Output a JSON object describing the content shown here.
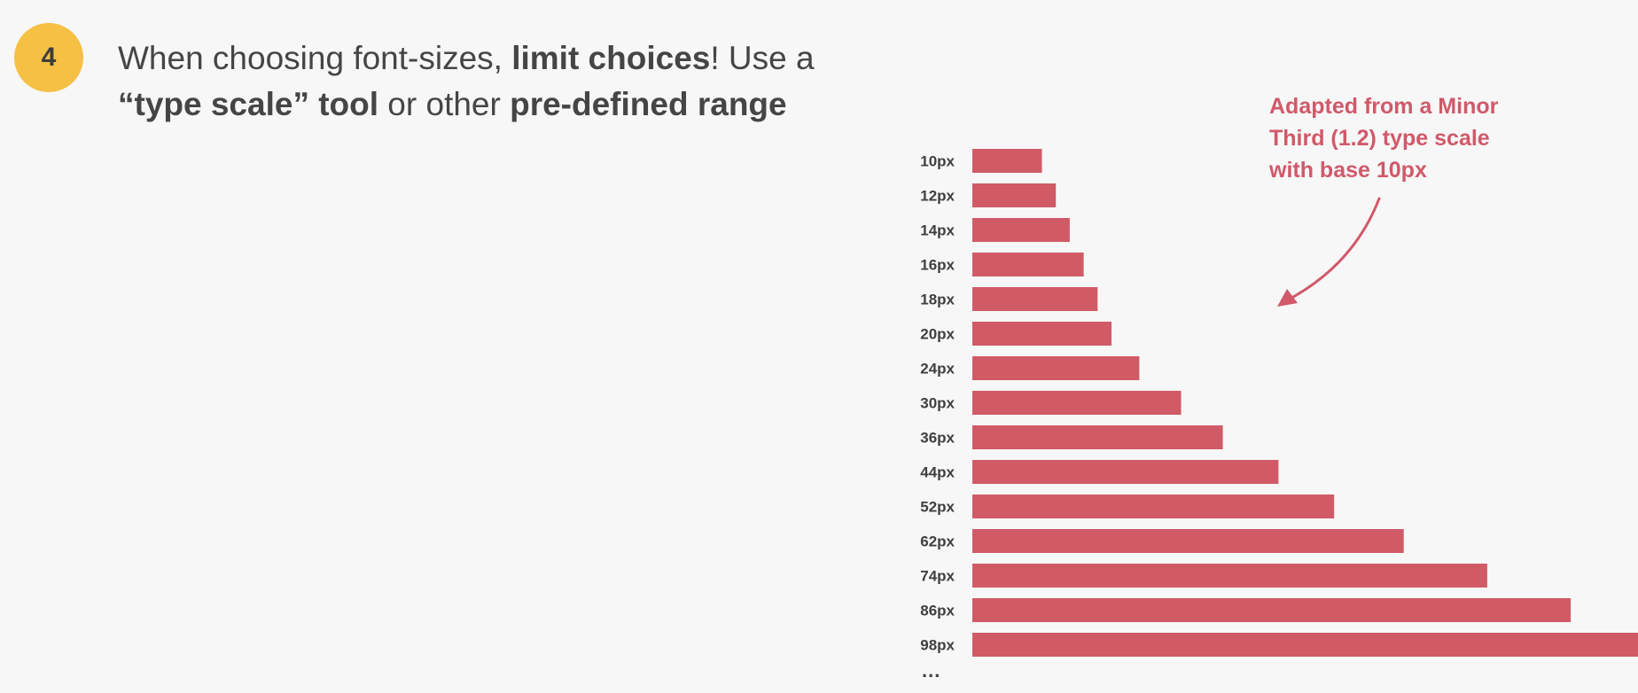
{
  "badge": {
    "number": "4"
  },
  "heading": {
    "line1_a": "When choosing font-sizes, ",
    "line1_b": "limit choices",
    "line1_c": "! Use a",
    "line2_a": "“type scale” tool",
    "line2_b": " or other ",
    "line2_c": "pre-defined range"
  },
  "note": {
    "lines": [
      "Adapted from a Minor",
      "Third (1.2) type scale",
      "with base 10px"
    ],
    "color": "#d0596a"
  },
  "chart_data": {
    "type": "bar",
    "orientation": "horizontal",
    "categories": [
      "10px",
      "12px",
      "14px",
      "16px",
      "18px",
      "20px",
      "24px",
      "30px",
      "36px",
      "44px",
      "52px",
      "62px",
      "74px",
      "86px",
      "98px"
    ],
    "values": [
      10,
      12,
      14,
      16,
      18,
      20,
      24,
      30,
      36,
      44,
      52,
      62,
      74,
      86,
      98
    ],
    "bar_color": "#d05b66",
    "continuation": "..."
  }
}
